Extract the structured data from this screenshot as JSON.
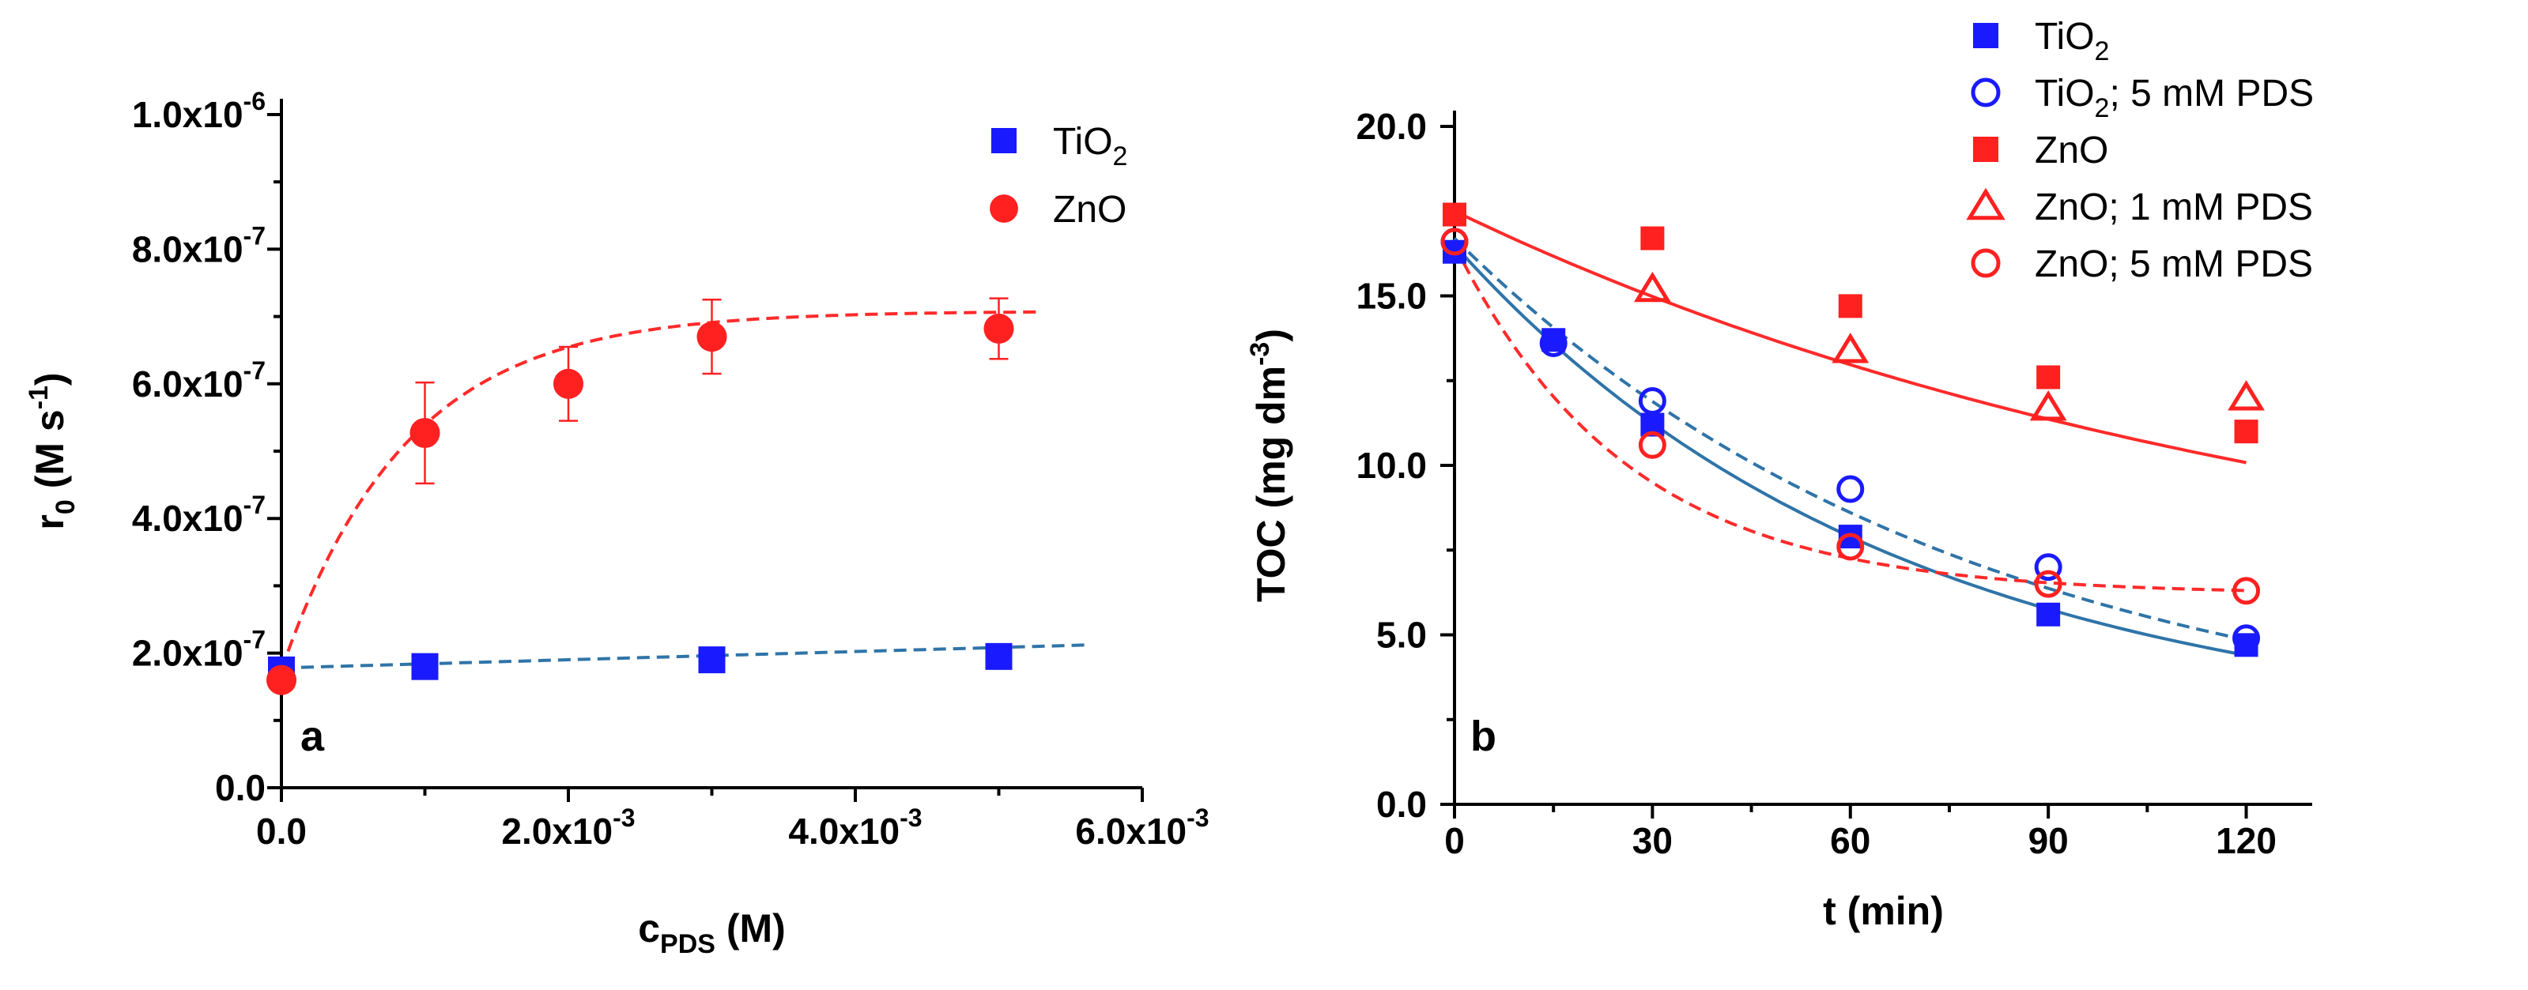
{
  "colors": {
    "TiO2": "#1a1aff",
    "ZnO": "#ff2020",
    "fit_TiO2": "#2f74a8",
    "fit_ZnO": "#ff2a2a",
    "axis": "#000000"
  },
  "chart_data": [
    {
      "type": "scatter",
      "panel": "a",
      "xlabel": {
        "main": "c",
        "sub": "PDS",
        "rest": " (M)"
      },
      "ylabel": {
        "main": "r",
        "sub": "0",
        "rest": " (M s",
        "sup": "-1",
        "end": ")"
      },
      "xlim": [
        0,
        0.006
      ],
      "ylim": [
        0,
        1e-06
      ],
      "x_ticks": [
        {
          "value": 0,
          "base": "0.0",
          "exp": ""
        },
        {
          "value": 0.002,
          "base": "2.0x10",
          "exp": "-3"
        },
        {
          "value": 0.004,
          "base": "4.0x10",
          "exp": "-3"
        },
        {
          "value": 0.006,
          "base": "6.0x10",
          "exp": "-3"
        }
      ],
      "y_ticks": [
        {
          "value": 0,
          "base": "0.0",
          "exp": ""
        },
        {
          "value": 2e-07,
          "base": "2.0x10",
          "exp": "-7"
        },
        {
          "value": 4e-07,
          "base": "4.0x10",
          "exp": "-7"
        },
        {
          "value": 6e-07,
          "base": "6.0x10",
          "exp": "-7"
        },
        {
          "value": 8e-07,
          "base": "8.0x10",
          "exp": "-7"
        },
        {
          "value": 1e-06,
          "base": "1.0x10",
          "exp": "-6"
        }
      ],
      "legend_position": "top-right",
      "series": [
        {
          "name": "TiO",
          "name_sub": "2",
          "marker": "square-filled",
          "color_key": "TiO2",
          "x": [
            0,
            0.001,
            0.003,
            0.005
          ],
          "y": [
            1.75e-07,
            1.8e-07,
            1.9e-07,
            1.95e-07
          ],
          "err": [
            5e-09,
            5e-09,
            1.5e-08,
            1.5e-08
          ],
          "fit": {
            "style": "dashed",
            "color_key": "fit_TiO2",
            "kind": "linear",
            "x0": 0,
            "x1": 0.0056,
            "y0": 1.78e-07,
            "y1": 2.12e-07
          }
        },
        {
          "name": "ZnO",
          "name_sub": "",
          "marker": "circle-filled",
          "color_key": "ZnO",
          "x": [
            0,
            0.001,
            0.002,
            0.003,
            0.005
          ],
          "y": [
            1.6e-07,
            5.27e-07,
            6e-07,
            6.7e-07,
            6.82e-07
          ],
          "err": [
            0,
            7.5e-08,
            5.5e-08,
            5.5e-08,
            4.5e-08
          ],
          "fit": {
            "style": "dashed",
            "color_key": "fit_ZnO",
            "kind": "saturation",
            "x0": 0,
            "x1": 0.0053,
            "y0": 1.75e-07,
            "ymax": 7.08e-07,
            "k": 1150
          }
        }
      ]
    },
    {
      "type": "scatter",
      "panel": "b",
      "xlabel": {
        "main": "t (min)"
      },
      "ylabel": {
        "main": "TOC (mg dm",
        "sup": "-3",
        "end": ")"
      },
      "xlim": [
        0,
        130
      ],
      "ylim": [
        0,
        20
      ],
      "x_ticks": [
        {
          "value": 0,
          "label": "0"
        },
        {
          "value": 30,
          "label": "30"
        },
        {
          "value": 60,
          "label": "60"
        },
        {
          "value": 90,
          "label": "90"
        },
        {
          "value": 120,
          "label": "120"
        }
      ],
      "y_ticks": [
        {
          "value": 0,
          "label": "0.0"
        },
        {
          "value": 5,
          "label": "5.0"
        },
        {
          "value": 10,
          "label": "10.0"
        },
        {
          "value": 15,
          "label": "15.0"
        },
        {
          "value": 20,
          "label": "20.0"
        }
      ],
      "legend_position": "top-right",
      "series": [
        {
          "name": "TiO",
          "name_sub": "2",
          "name_rest": "",
          "marker": "square-filled",
          "color_key": "TiO2",
          "x": [
            0,
            15,
            30,
            60,
            90,
            120
          ],
          "y": [
            16.3,
            13.7,
            11.2,
            7.9,
            5.6,
            4.7
          ],
          "fit": {
            "style": "solid",
            "color_key": "fit_TiO2",
            "kind": "exp",
            "yinf": 2.0,
            "a": 14.5,
            "k": 0.015
          }
        },
        {
          "name": "TiO",
          "name_sub": "2",
          "name_rest": "; 5 mM PDS",
          "marker": "circle-open",
          "color_key": "TiO2",
          "x": [
            0,
            15,
            30,
            60,
            90,
            120
          ],
          "y": [
            16.6,
            13.6,
            11.9,
            9.3,
            7.0,
            4.9
          ],
          "fit": {
            "style": "dashed",
            "color_key": "fit_TiO2",
            "kind": "exp",
            "yinf": 1.6,
            "a": 15.1,
            "k": 0.0128
          }
        },
        {
          "name": "ZnO",
          "name_sub": "",
          "name_rest": "",
          "marker": "square-filled",
          "color_key": "ZnO",
          "x": [
            0,
            30,
            60,
            90,
            120
          ],
          "y": [
            17.4,
            16.7,
            14.7,
            12.6,
            11.0
          ],
          "fit": {
            "style": "solid",
            "color_key": "fit_ZnO",
            "kind": "exp",
            "yinf": 5.0,
            "a": 12.5,
            "k": 0.0075
          }
        },
        {
          "name": "ZnO",
          "name_sub": "",
          "name_rest": "; 1 mM PDS",
          "marker": "triangle-open",
          "color_key": "ZnO",
          "x": [
            30,
            60,
            90,
            120
          ],
          "y": [
            15.2,
            13.4,
            11.7,
            12.0
          ],
          "fit": null
        },
        {
          "name": "ZnO",
          "name_sub": "",
          "name_rest": "; 5 mM PDS",
          "marker": "circle-open",
          "color_key": "ZnO",
          "x": [
            0,
            30,
            60,
            90,
            120
          ],
          "y": [
            16.6,
            10.6,
            7.6,
            6.5,
            6.3
          ],
          "fit": {
            "style": "dashed",
            "color_key": "fit_ZnO",
            "kind": "exp",
            "yinf": 6.2,
            "a": 10.3,
            "k": 0.038
          }
        }
      ]
    }
  ]
}
